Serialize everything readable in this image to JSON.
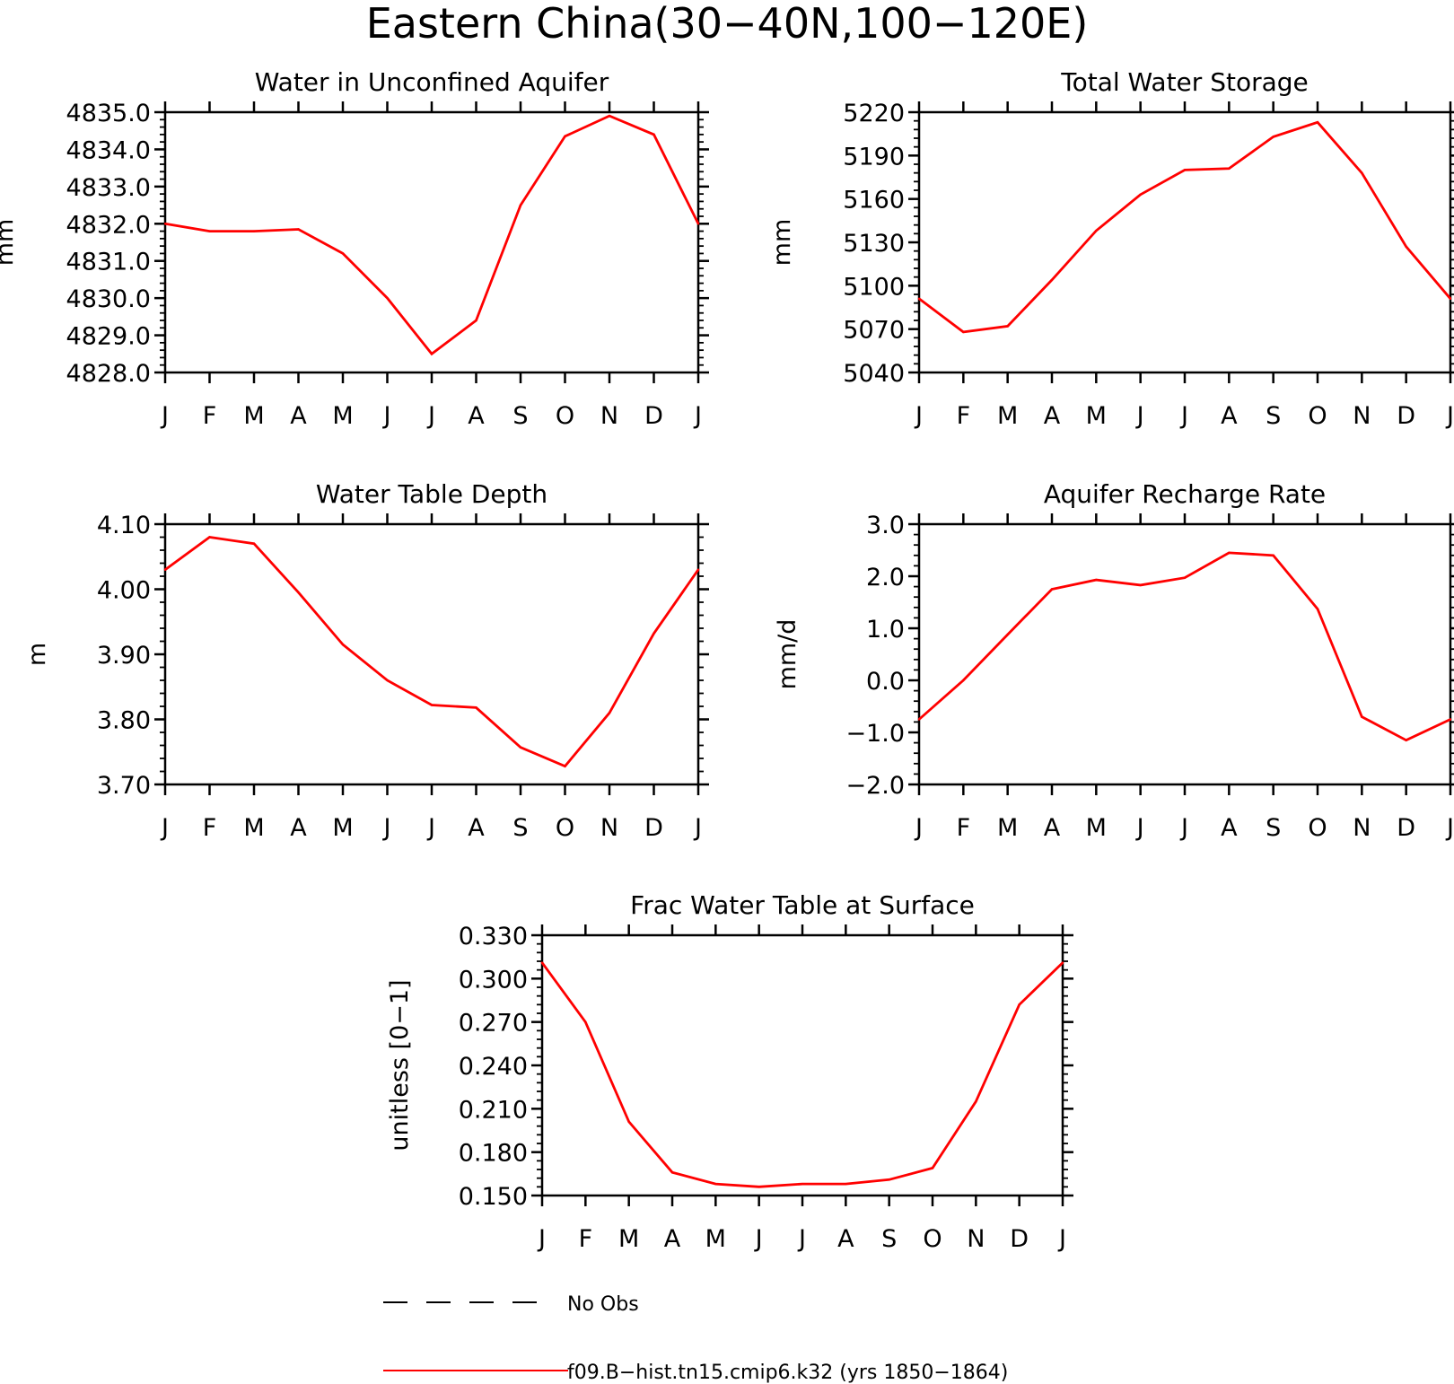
{
  "figure_title": "Eastern China(30−40N,100−120E)",
  "legend": {
    "obs_label": "No Obs",
    "model_label": "f09.B−hist.tn15.cmip6.k32 (yrs 1850−1864)",
    "model_color": "#ff0000",
    "obs_color": "#000000"
  },
  "chart_data": [
    {
      "type": "line",
      "title": "Water in Unconfined Aquifer",
      "xlabel": "",
      "ylabel": "mm",
      "categories": [
        "J",
        "F",
        "M",
        "A",
        "M",
        "J",
        "J",
        "A",
        "S",
        "O",
        "N",
        "D",
        "J"
      ],
      "ylim": [
        4828.0,
        4835.0
      ],
      "yticks": [
        "4828.0",
        "4829.0",
        "4830.0",
        "4831.0",
        "4832.0",
        "4833.0",
        "4834.0",
        "4835.0"
      ],
      "series": [
        {
          "color": "#ff0000",
          "values": [
            4832.0,
            4831.8,
            4831.8,
            4831.85,
            4831.2,
            4830.0,
            4828.5,
            4829.4,
            4832.5,
            4834.35,
            4834.9,
            4834.4,
            4832.0
          ]
        }
      ]
    },
    {
      "type": "line",
      "title": "Total Water Storage",
      "xlabel": "",
      "ylabel": "mm",
      "categories": [
        "J",
        "F",
        "M",
        "A",
        "M",
        "J",
        "J",
        "A",
        "S",
        "O",
        "N",
        "D",
        "J"
      ],
      "ylim": [
        5040,
        5220
      ],
      "yticks": [
        "5040",
        "5070",
        "5100",
        "5130",
        "5160",
        "5190",
        "5220"
      ],
      "series": [
        {
          "color": "#ff0000",
          "values": [
            5091,
            5068,
            5072,
            5104,
            5138,
            5163,
            5180,
            5181,
            5203,
            5213,
            5178,
            5127,
            5091
          ]
        }
      ]
    },
    {
      "type": "line",
      "title": "Water Table Depth",
      "xlabel": "",
      "ylabel": "m",
      "categories": [
        "J",
        "F",
        "M",
        "A",
        "M",
        "J",
        "J",
        "A",
        "S",
        "O",
        "N",
        "D",
        "J"
      ],
      "ylim": [
        3.7,
        4.1
      ],
      "yticks": [
        "3.70",
        "3.80",
        "3.90",
        "4.00",
        "4.10"
      ],
      "series": [
        {
          "color": "#ff0000",
          "values": [
            4.03,
            4.08,
            4.07,
            3.995,
            3.915,
            3.86,
            3.822,
            3.818,
            3.757,
            3.728,
            3.81,
            3.932,
            4.03
          ]
        }
      ]
    },
    {
      "type": "line",
      "title": "Aquifer Recharge Rate",
      "xlabel": "",
      "ylabel": "mm/d",
      "categories": [
        "J",
        "F",
        "M",
        "A",
        "M",
        "J",
        "J",
        "A",
        "S",
        "O",
        "N",
        "D",
        "J"
      ],
      "ylim": [
        -2.0,
        3.0
      ],
      "yticks": [
        "−2.0",
        "−1.0",
        "0.0",
        "1.0",
        "2.0",
        "3.0"
      ],
      "series": [
        {
          "color": "#ff0000",
          "values": [
            -0.75,
            0.0,
            0.88,
            1.75,
            1.93,
            1.83,
            1.97,
            2.45,
            2.4,
            1.37,
            -0.7,
            -1.15,
            -0.75
          ]
        }
      ]
    },
    {
      "type": "line",
      "title": "Frac Water Table at Surface",
      "xlabel": "",
      "ylabel": "unitless [0−1]",
      "categories": [
        "J",
        "F",
        "M",
        "A",
        "M",
        "J",
        "J",
        "A",
        "S",
        "O",
        "N",
        "D",
        "J"
      ],
      "ylim": [
        0.15,
        0.33
      ],
      "yticks": [
        "0.150",
        "0.180",
        "0.210",
        "0.240",
        "0.270",
        "0.300",
        "0.330"
      ],
      "series": [
        {
          "color": "#ff0000",
          "values": [
            0.311,
            0.27,
            0.201,
            0.166,
            0.158,
            0.156,
            0.158,
            0.158,
            0.161,
            0.169,
            0.215,
            0.282,
            0.311
          ]
        }
      ]
    }
  ]
}
